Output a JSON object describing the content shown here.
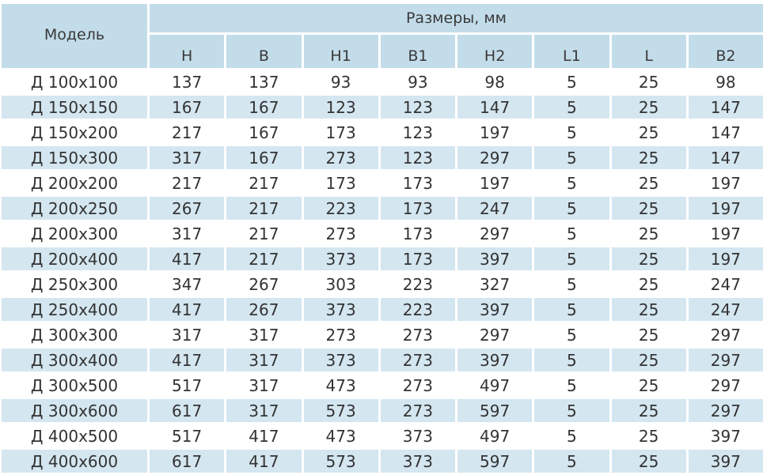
{
  "header": {
    "model_label": "Модель",
    "group_label": "Размеры, мм",
    "columns": [
      "H",
      "B",
      "H1",
      "B1",
      "H2",
      "L1",
      "L",
      "B2"
    ]
  },
  "colors": {
    "header_bg": "#c3dce9",
    "stripe_bg": "#d4e6f0",
    "text": "#333333"
  },
  "rows": [
    {
      "model": "Д 100x100",
      "values": [
        "137",
        "137",
        "93",
        "93",
        "98",
        "5",
        "25",
        "98"
      ]
    },
    {
      "model": "Д 150x150",
      "values": [
        "167",
        "167",
        "123",
        "123",
        "147",
        "5",
        "25",
        "147"
      ]
    },
    {
      "model": "Д 150x200",
      "values": [
        "217",
        "167",
        "173",
        "123",
        "197",
        "5",
        "25",
        "147"
      ]
    },
    {
      "model": "Д 150x300",
      "values": [
        "317",
        "167",
        "273",
        "123",
        "297",
        "5",
        "25",
        "147"
      ]
    },
    {
      "model": "Д 200x200",
      "values": [
        "217",
        "217",
        "173",
        "173",
        "197",
        "5",
        "25",
        "197"
      ]
    },
    {
      "model": "Д 200x250",
      "values": [
        "267",
        "217",
        "223",
        "173",
        "247",
        "5",
        "25",
        "197"
      ]
    },
    {
      "model": "Д 200x300",
      "values": [
        "317",
        "217",
        "273",
        "173",
        "297",
        "5",
        "25",
        "197"
      ]
    },
    {
      "model": "Д 200x400",
      "values": [
        "417",
        "217",
        "373",
        "173",
        "397",
        "5",
        "25",
        "197"
      ]
    },
    {
      "model": "Д 250x300",
      "values": [
        "347",
        "267",
        "303",
        "223",
        "327",
        "5",
        "25",
        "247"
      ]
    },
    {
      "model": "Д 250x400",
      "values": [
        "417",
        "267",
        "373",
        "223",
        "397",
        "5",
        "25",
        "247"
      ]
    },
    {
      "model": "Д 300x300",
      "values": [
        "317",
        "317",
        "273",
        "273",
        "297",
        "5",
        "25",
        "297"
      ]
    },
    {
      "model": "Д 300x400",
      "values": [
        "417",
        "317",
        "373",
        "273",
        "397",
        "5",
        "25",
        "297"
      ]
    },
    {
      "model": "Д 300x500",
      "values": [
        "517",
        "317",
        "473",
        "273",
        "497",
        "5",
        "25",
        "297"
      ]
    },
    {
      "model": "Д 300x600",
      "values": [
        "617",
        "317",
        "573",
        "273",
        "597",
        "5",
        "25",
        "297"
      ]
    },
    {
      "model": "Д 400x500",
      "values": [
        "517",
        "417",
        "473",
        "373",
        "497",
        "5",
        "25",
        "397"
      ]
    },
    {
      "model": "Д 400x600",
      "values": [
        "617",
        "417",
        "573",
        "373",
        "597",
        "5",
        "25",
        "397"
      ]
    }
  ]
}
